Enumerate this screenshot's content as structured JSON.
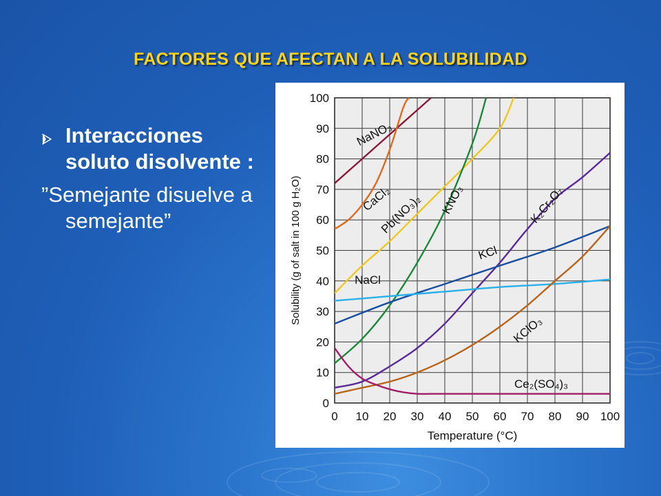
{
  "slide": {
    "title": "FACTORES QUE AFECTAN A LA SOLUBILIDAD",
    "bullet": "Interacciones soluto disolvente :",
    "quote": "”Semejante disuelve a semejante”",
    "bullet_icon": "arrow-right-icon",
    "colors": {
      "title": "#ffd21a",
      "background": "#1f5fb8",
      "text": "#ffffff"
    }
  },
  "chart_data": {
    "type": "line",
    "title": "",
    "xlabel": "Temperature (°C)",
    "ylabel": "Solubility (g of salt in 100 g H₂O)",
    "xlim": [
      0,
      100
    ],
    "ylim": [
      0,
      100
    ],
    "xticks": [
      "0",
      "10",
      "20",
      "30",
      "40",
      "50",
      "60",
      "70",
      "80",
      "90",
      "100"
    ],
    "yticks": [
      "0",
      "10",
      "20",
      "30",
      "40",
      "50",
      "60",
      "70",
      "80",
      "90",
      "100"
    ],
    "grid": true,
    "plot_background": "#ededed",
    "series": [
      {
        "name": "NaNO₃",
        "color": "#8a1a3a",
        "x": [
          0,
          10,
          20,
          30,
          35
        ],
        "y": [
          72,
          80,
          88,
          96,
          100
        ]
      },
      {
        "name": "CaCl₂",
        "color": "#e06a1c",
        "x": [
          0,
          5,
          10,
          15,
          20,
          25,
          27
        ],
        "y": [
          57,
          60,
          65,
          72,
          83,
          97,
          100
        ]
      },
      {
        "name": "Pb(NO₃)₂",
        "color": "#f0c81e",
        "x": [
          0,
          10,
          20,
          30,
          40,
          50,
          60,
          65
        ],
        "y": [
          36,
          45,
          53,
          62,
          71,
          80,
          90,
          100
        ]
      },
      {
        "name": "KNO₃",
        "color": "#1a8a3a",
        "x": [
          0,
          10,
          20,
          30,
          40,
          50,
          55
        ],
        "y": [
          13,
          21,
          32,
          46,
          63,
          85,
          100
        ]
      },
      {
        "name": "K₂Cr₂O₇",
        "color": "#5a2a9a",
        "x": [
          0,
          10,
          20,
          30,
          40,
          50,
          60,
          70,
          80,
          90,
          100
        ],
        "y": [
          5,
          7,
          12,
          18,
          26,
          36,
          46,
          57,
          67,
          74,
          82
        ]
      },
      {
        "name": "KCl",
        "color": "#1a4fa0",
        "x": [
          0,
          20,
          40,
          60,
          80,
          100
        ],
        "y": [
          26,
          33,
          39,
          45,
          51,
          58
        ]
      },
      {
        "name": "NaCl",
        "color": "#2ab0e8",
        "x": [
          0,
          20,
          40,
          60,
          80,
          100
        ],
        "y": [
          33.5,
          35,
          36.5,
          38,
          39,
          40.5
        ]
      },
      {
        "name": "KClO₃",
        "color": "#b8641a",
        "x": [
          0,
          10,
          20,
          30,
          40,
          50,
          60,
          70,
          80,
          90,
          100
        ],
        "y": [
          3,
          5,
          7,
          10,
          14,
          19,
          25,
          32,
          40,
          48,
          58
        ]
      },
      {
        "name": "Ce₂(SO₄)₃",
        "color": "#a01e6a",
        "x": [
          0,
          5,
          10,
          15,
          20,
          25,
          30,
          35,
          40,
          100
        ],
        "y": [
          18,
          12,
          8,
          6,
          4.5,
          3.5,
          3,
          3,
          3,
          3
        ]
      }
    ]
  }
}
